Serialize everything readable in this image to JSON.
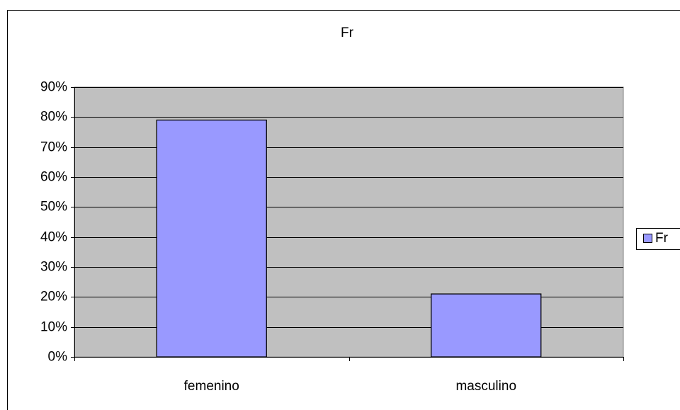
{
  "chart_data": {
    "type": "bar",
    "title": "Fr",
    "categories": [
      "femenino",
      "masculino"
    ],
    "series": [
      {
        "name": "Fr",
        "color": "#9999ff",
        "values": [
          79,
          21
        ]
      }
    ],
    "ylim": [
      0,
      90
    ],
    "yticks": [
      {
        "value": 0,
        "label": "0%"
      },
      {
        "value": 10,
        "label": "10%"
      },
      {
        "value": 20,
        "label": "20%"
      },
      {
        "value": 30,
        "label": "30%"
      },
      {
        "value": 40,
        "label": "40%"
      },
      {
        "value": 50,
        "label": "50%"
      },
      {
        "value": 60,
        "label": "60%"
      },
      {
        "value": 70,
        "label": "70%"
      },
      {
        "value": 80,
        "label": "80%"
      },
      {
        "value": 90,
        "label": "90%"
      }
    ],
    "grid": true,
    "plot_background": "#c0c0c0",
    "legend": "right"
  }
}
